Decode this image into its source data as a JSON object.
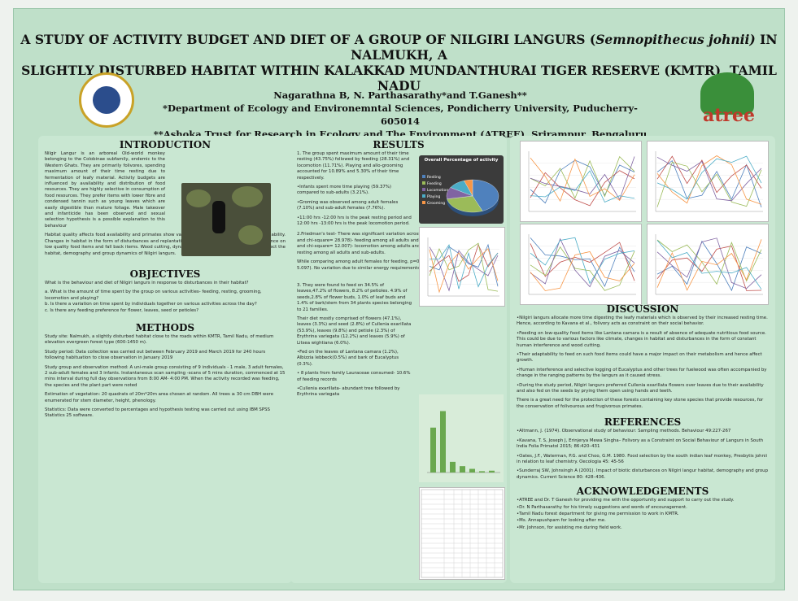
{
  "title": {
    "line1_before": "A STUDY OF ACTIVITY BUDGET AND DIET OF A GROUP OF NILGIRI LANGURS (",
    "line1_italic": "Semnopithecus johnii)",
    "line1_after": " IN NALMUKH, A",
    "line2": "SLIGHTLY DISTURBED HABITAT WITHIN KALAKKAD MUNDANTHURAI TIGER RESERVE (KMTR), TAMIL NADU"
  },
  "authors": {
    "names": "Nagarathna B, N. Parthasarathy*and T.Ganesh**",
    "affil1": "*Department of Ecology and Environemntal Sciences, Pondicherry University, Puducherry- 605014",
    "affil2": "**Ashoka Trust for Research in Ecology and The Environment (ATREE), Srirampur, Bengaluru"
  },
  "logos": {
    "left_text": "PONDICHERRY UNIVERSITY",
    "right_text": "atree"
  },
  "intro": {
    "heading": "INTRODUCTION",
    "p1": "Nilgir Langur is an arboreal Old-world monkey belonging to the Colobinae subfamily, endemic to the Western Ghats. They are primarily folivores, spending maximum amount of their time resting due to fermentation of leafy material. Activity budgets are influenced by availability and distribution of food resources. They are highly selective in consumption of food resources. They prefer items with lower fibre and condensed tannin such as young leaves which are easily digestible than mature foliage. Male takeover and infanticide has been observed and sexual selection hypothesis is a possible explanation to this behaviour",
    "p2": "Habitat quality affects food availability and primates show varying responses to changes in food availability. Changes in habitat in the form of disturbances and replantation are known to increase their dependence on low quality food items and fall back items. Wood cutting, dynamiting and pilgrimage are known to affect the habitat, demography and group dynamics of Nilgiri langurs."
  },
  "objectives": {
    "heading": "OBJECTIVES",
    "p1": "What is the behaviour and diet of Nilgiri langurs in response to disturbances in their habitat?",
    "p2": "a. What is the amount of time spent by the group on various activities- feeding, resting, grooming, locomotion and playing?",
    "p3": "b. Is there a variation on time spent by individuals together on various activities across the day?",
    "p4": "c. Is there any feeding preference for flower, leaves, seed or petioles?"
  },
  "methods": {
    "heading": "METHODS",
    "site": "Study site: Nalmukh, a slightly disturbed habitat close to the roads within KMTR, Tamil Nadu, of medium elevation evergreen forest type (600-1450 m).",
    "period": "Study period: Data collection was carried out between February 2019 and March 2019 for 240 hours following habituation to close observation in January 2019",
    "group": "Study group and observation method: A uni-male group consisting of 9 individuals - 1 male, 3 adult females, 2 sub-adult females and 3 infants. Instantaneous scan sampling -scans of 5 mins duration, commenced at 15 mins interval during full day observations from 8:00 AM- 4:00 PM. When the activity recorded was feeding, the species and the plant part were noted",
    "veg": "Estimation of vegetation: 20 quadrats of 20m*20m area chosen at random. All trees ≥ 30 cm DBH were enumerated for stem diameter, height, phenology.",
    "stats": "Statistics: Data were converted to percentages and hypothesis testing was carried out using IBM SPSS Statistics 25 software."
  },
  "results": {
    "heading": "RESULTS",
    "r1": "1. The group spent maximum amount of their time resting (43.75%) followed by feeding (28.31%) and locomotion (11.71%). Playing and allo-grooming accounted for 10.89% and 5.30% of their time respectively.",
    "r2": "•Infants spent more time playing (59.37%) compared to sub-adults (3.21%).",
    "r3": "•Groming was observed among adult females (7.10%) and sub-adult females (7.76%).",
    "r4": "•11:00 hrs -12:00 hrs is the peak resting period and 12:00 hrs -13:00 hrs is the peak locomotion period.",
    "r5": "2.Friedman's test- There was significant variation across activities. p<0.00 (p< 0.05, N=8 and chi-square= 28.978)- feeding among all adults and sub-adults. p<0.035 (< 0.05, N=8 and chi-square= 12.007)- locomotion among adults and sub-adults and p<0.00 (<0.05)- resting among all adults and sub-adults.",
    "r6": "While comparing among adult females for feeding, p=0.078 (> 0.05,N= 8 and chi-square= 5.097). No variation due to similar energy requirements .",
    "r7": "3. They were found to feed on 34.5% of leaves,47.2% of flowers, 8.2% of petioles. 4.9% of seeds,2.8% of flower buds, 1.0% of leaf buds and 1.4% of bark/stem from 34 plants species belonging to 21 families.",
    "r8": "Their diet mostly comprised of flowers (47.1%), leaves (3.3%) and seed (2.8%) of Cullenia exarillata (53.9%), leaves (9.8%) and petiole (2.3%) of Erythrina variegata (12.2%) and leaves (5.9%) of Litsea wightiana (6.0%).",
    "r9": "•Fed on the leaves of Lantana camara (1.2%), Albizzia lebbeck(0.5%) and bark of Eucalyptus (0.3%).",
    "r10": "• 8 plants from family Lauraceae consumed- 10.6% of feeding records",
    "r11": "•Cullenia exarillata- abundant tree followed by Erythrina variegata"
  },
  "pie_chart": {
    "title": "Overall Percentage of activity",
    "legend": [
      "Resting",
      "Feeding",
      "Locomotion",
      "Playing",
      "Grooming"
    ],
    "values": [
      43.75,
      28.31,
      11.71,
      10.89,
      5.3
    ],
    "colors": [
      "#4f81bd",
      "#9bbb59",
      "#8064a2",
      "#4bacc6",
      "#f79646"
    ]
  },
  "discussion": {
    "heading": "DISCUSSION",
    "d1": "•Nilgiri langurs allocate more time digesting the leafy materials which is observed by their increased resting time. Hence, according to Kavana et al., folivory acts as constraint on their social behavior.",
    "d2": "•Feeding on low-quality food items like Lantana camara is a result of absence of adequate nutritious food source. This could be due to various factors like climate, changes in habitat and disturbances in the form of constant human interference and wood cutting.",
    "d3": "•Their adaptability to feed on such food items could have a major impact on their metabolism and hence affect growth.",
    "d4": "•Human interference and selective logging of Eucalyptus and other trees for fuelwood was often accompanied by change in the ranging patterns by the langurs as it caused stress.",
    "d5": "•During the study period, Nilgiri langurs preferred Cullenia exarillata flowers over leaves due to their availability and also fed on the seeds by prying them open using hands and teeth.",
    "d6": "There is a great need for the protection of these forests containing key stone species that provide resources, for the conservation of folivourous and frugivorous primates."
  },
  "references": {
    "heading": "REFERENCES",
    "items": [
      "•Altmann, J. (1974). Observational study of behaviour: Sampling methods. Behaviour 49:227-267",
      "•Kavana, T. S, Joseph J, Erinjerya Mewa Singha– Folivory as a Constraint on Social Behaviour of Langurs in South India Folia Primatol 2015; 86:420–431",
      "•Oates, J.F., Waterman, P.G. and Choo, G.M. 1980. Food selection by the south indian leaf monkey, Presbytis johnii in relation to leaf chemistry. Oecologia 45: 45-56",
      "•Sunderraj SW, Johnsingh A (2001). Impact of biotic disturbances on Nilgiri langur habitat, demography and group dynamics. Current Science 80: 428–436."
    ]
  },
  "acknowledgements": {
    "heading": "ACKNOWLEDGEMENTS",
    "items": [
      "•ATREE and Dr. T Ganesh for providing me with the opportunity and support to carry out the study.",
      "•Dr. N Parthasarathy for his timely suggestions and words of encouragement.",
      "•Tamil Nadu forest department for giving me permission to work in KMTR.",
      "•Ms. Annapushpam for looking after me.",
      "•Mr. Johnson, for assisting me during field work."
    ]
  }
}
